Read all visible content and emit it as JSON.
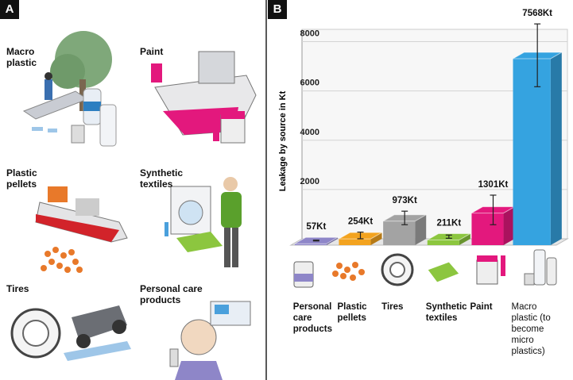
{
  "panel_labels": [
    "A",
    "B"
  ],
  "illustrations": [
    "Macro plastic",
    "Paint",
    "Plastic pellets",
    "Synthetic textiles",
    "Tires",
    "Personal care products"
  ],
  "chart_data": {
    "type": "bar3d",
    "y_label": "Leakage by source in Kt",
    "categories": [
      "Personal care products",
      "Plastic pellets",
      "Tires",
      "Synthetic textiles",
      "Paint",
      "Macro plastic (to become micro plastics)"
    ],
    "values": [
      57,
      254,
      973,
      211,
      1301,
      7568
    ],
    "value_labels": [
      "57Kt",
      "254Kt",
      "973Kt",
      "211Kt",
      "1301Kt",
      "7568Kt"
    ],
    "error_low": [
      40,
      130,
      700,
      150,
      700,
      6300
    ],
    "error_high": [
      75,
      400,
      1250,
      280,
      1900,
      8850
    ],
    "colors": [
      "#8e86c8",
      "#f3a31f",
      "#a3a3a3",
      "#8cc63f",
      "#e3187d",
      "#35a3e0"
    ],
    "ylim": [
      0,
      8500
    ],
    "yticks": [
      2000,
      4000,
      6000,
      8000
    ],
    "grid": true
  }
}
